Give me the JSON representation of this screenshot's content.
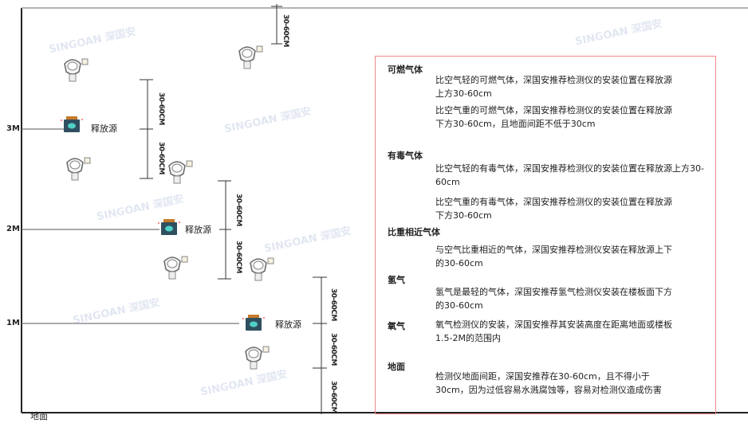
{
  "levels": {
    "l3": "3M",
    "l2": "2M",
    "l1": "1M",
    "ground": "地面"
  },
  "dimension_label": "30-60CM",
  "source_label": "释放源",
  "watermark": "SINGOAN 深国安",
  "colors": {
    "panel_border": "#e88888",
    "source_body": "#2f4f5f",
    "source_cap": "#c87a2a",
    "source_face": "#4fd0c8"
  },
  "panel": {
    "sections": [
      {
        "heading": "可燃气体",
        "paragraphs": [
          "比空气轻的可燃气体，深国安推荐检测仪的安装位置在释放源上方30-60cm",
          "比空气重的可燃气体，深国安推荐检测仪的安装位置在释放源下方30-60cm，且地面间距不低于30cm"
        ]
      },
      {
        "heading": "有毒气体",
        "paragraphs": [
          "比空气轻的有毒气体，深国安推荐检测仪的安装位置在释放源上方30-60cm",
          "比空气重的有毒气体，深国安推荐检测仪的安装位置在释放源下方30-60cm"
        ]
      },
      {
        "heading": "比重相近气体",
        "paragraphs": [
          "与空气比重相近的气体，深国安推荐检测仪安装在释放源上下的30-60cm"
        ]
      },
      {
        "heading": "氢气",
        "paragraphs": [
          "氢气是最轻的气体，深国安推荐氢气检测仪安装在楼板面下方的30-60cm"
        ]
      },
      {
        "heading": "氧气",
        "paragraphs": [
          "氧气检测仪的安装，深国安推荐其安装高度在距离地面或楼板1.5-2M的范围内"
        ]
      },
      {
        "heading": "地面",
        "paragraphs": [
          "检测仪地面间距，深国安推荐在30-60cm，且不得小于30cm，因为过低容易水溅腐蚀等，容易对检测仪造成伤害"
        ]
      }
    ]
  }
}
